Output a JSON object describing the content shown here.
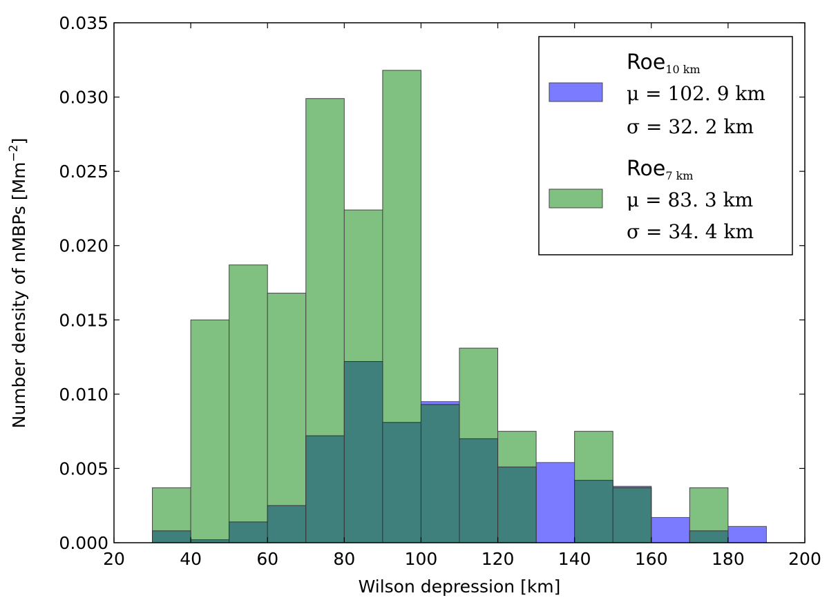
{
  "chart_data": {
    "type": "bar",
    "xlabel": "Wilson depression [km]",
    "ylabel": "Number density of nMBPs [Mm",
    "ylabel_exp": "−2",
    "ylabel_end": "]",
    "xlim": [
      20,
      200
    ],
    "ylim": [
      0,
      0.035
    ],
    "xticks": [
      "20",
      "40",
      "60",
      "80",
      "100",
      "120",
      "140",
      "160",
      "180",
      "200"
    ],
    "yticks": [
      "0.000",
      "0.005",
      "0.010",
      "0.015",
      "0.020",
      "0.025",
      "0.030",
      "0.035"
    ],
    "grid": false,
    "legend_position": "top-right",
    "bin_edges": [
      30,
      40,
      50,
      60,
      70,
      80,
      90,
      100,
      110,
      120,
      130,
      140,
      150,
      160,
      170,
      180,
      190
    ],
    "series": [
      {
        "name": "Roe",
        "subscript": "10 km",
        "mu": "μ = 102. 9 km",
        "sigma": "σ = 32. 2 km",
        "color": "#7b7bff",
        "values": [
          0.0008,
          0.0002,
          0.0014,
          0.0025,
          0.0072,
          0.0122,
          0.0081,
          0.0095,
          0.007,
          0.0051,
          0.0054,
          0.0042,
          0.0038,
          0.0017,
          0.0008,
          0.0011
        ]
      },
      {
        "name": "Roe",
        "subscript": "7 km",
        "mu": "μ = 83. 3 km",
        "sigma": "σ = 34. 4 km",
        "color": "#80c080",
        "values": [
          0.0037,
          0.015,
          0.0187,
          0.0168,
          0.0299,
          0.0224,
          0.0318,
          0.0093,
          0.0131,
          0.0075,
          0.0,
          0.0075,
          0.0037,
          0.0,
          0.0037,
          0.0
        ]
      }
    ]
  }
}
